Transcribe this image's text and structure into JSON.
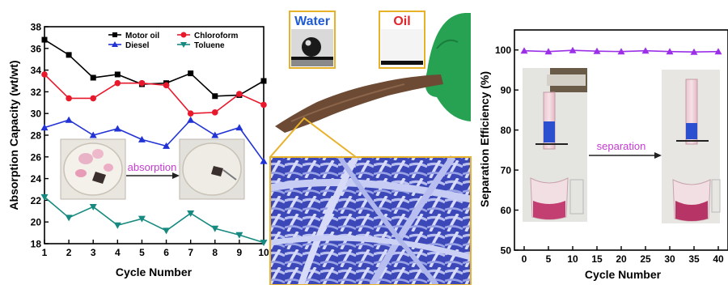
{
  "chart_data": [
    {
      "type": "line",
      "xlabel": "Cycle Number",
      "ylabel": "Absorption Capacity (wt/wt)",
      "x": [
        1,
        2,
        3,
        4,
        5,
        6,
        7,
        8,
        9,
        10
      ],
      "xlim": [
        1,
        10
      ],
      "ylim": [
        18,
        38
      ],
      "yticks": [
        18,
        20,
        22,
        24,
        26,
        28,
        30,
        32,
        34,
        36,
        38
      ],
      "grid": false,
      "legend_position": "top-right",
      "series": [
        {
          "name": "Motor oil",
          "color": "#000000",
          "marker": "square",
          "values": [
            36.8,
            35.4,
            33.3,
            33.6,
            32.7,
            32.8,
            33.7,
            31.6,
            31.7,
            33.0
          ]
        },
        {
          "name": "Chloroform",
          "color": "#e8192c",
          "marker": "circle",
          "values": [
            33.6,
            31.4,
            31.4,
            32.8,
            32.8,
            32.6,
            30.0,
            30.1,
            31.8,
            30.8
          ]
        },
        {
          "name": "Diesel",
          "color": "#2233d6",
          "marker": "triangle-up",
          "values": [
            28.7,
            29.4,
            28.0,
            28.6,
            27.6,
            27.0,
            29.4,
            28.0,
            28.7,
            25.6
          ]
        },
        {
          "name": "Toluene",
          "color": "#168a80",
          "marker": "triangle-down",
          "values": [
            22.3,
            20.4,
            21.4,
            19.7,
            20.3,
            19.2,
            20.8,
            19.4,
            18.8,
            18.1
          ]
        }
      ],
      "inset_annotation": "absorption"
    },
    {
      "type": "line",
      "xlabel": "Cycle Number",
      "ylabel": "Separation Efficiency (%)",
      "x": [
        0,
        5,
        10,
        15,
        20,
        25,
        30,
        35,
        40
      ],
      "xlim": [
        -2,
        42
      ],
      "ylim": [
        50,
        105
      ],
      "yticks": [
        50,
        60,
        70,
        80,
        90,
        100
      ],
      "grid": false,
      "series": [
        {
          "color": "#9b30e8",
          "marker": "triangle-up",
          "values": [
            99.8,
            99.6,
            99.9,
            99.7,
            99.6,
            99.8,
            99.6,
            99.5,
            99.6
          ]
        }
      ],
      "inset_annotation": "separation"
    }
  ],
  "middle_panel": {
    "water_label": "Water",
    "oil_label": "Oil"
  }
}
